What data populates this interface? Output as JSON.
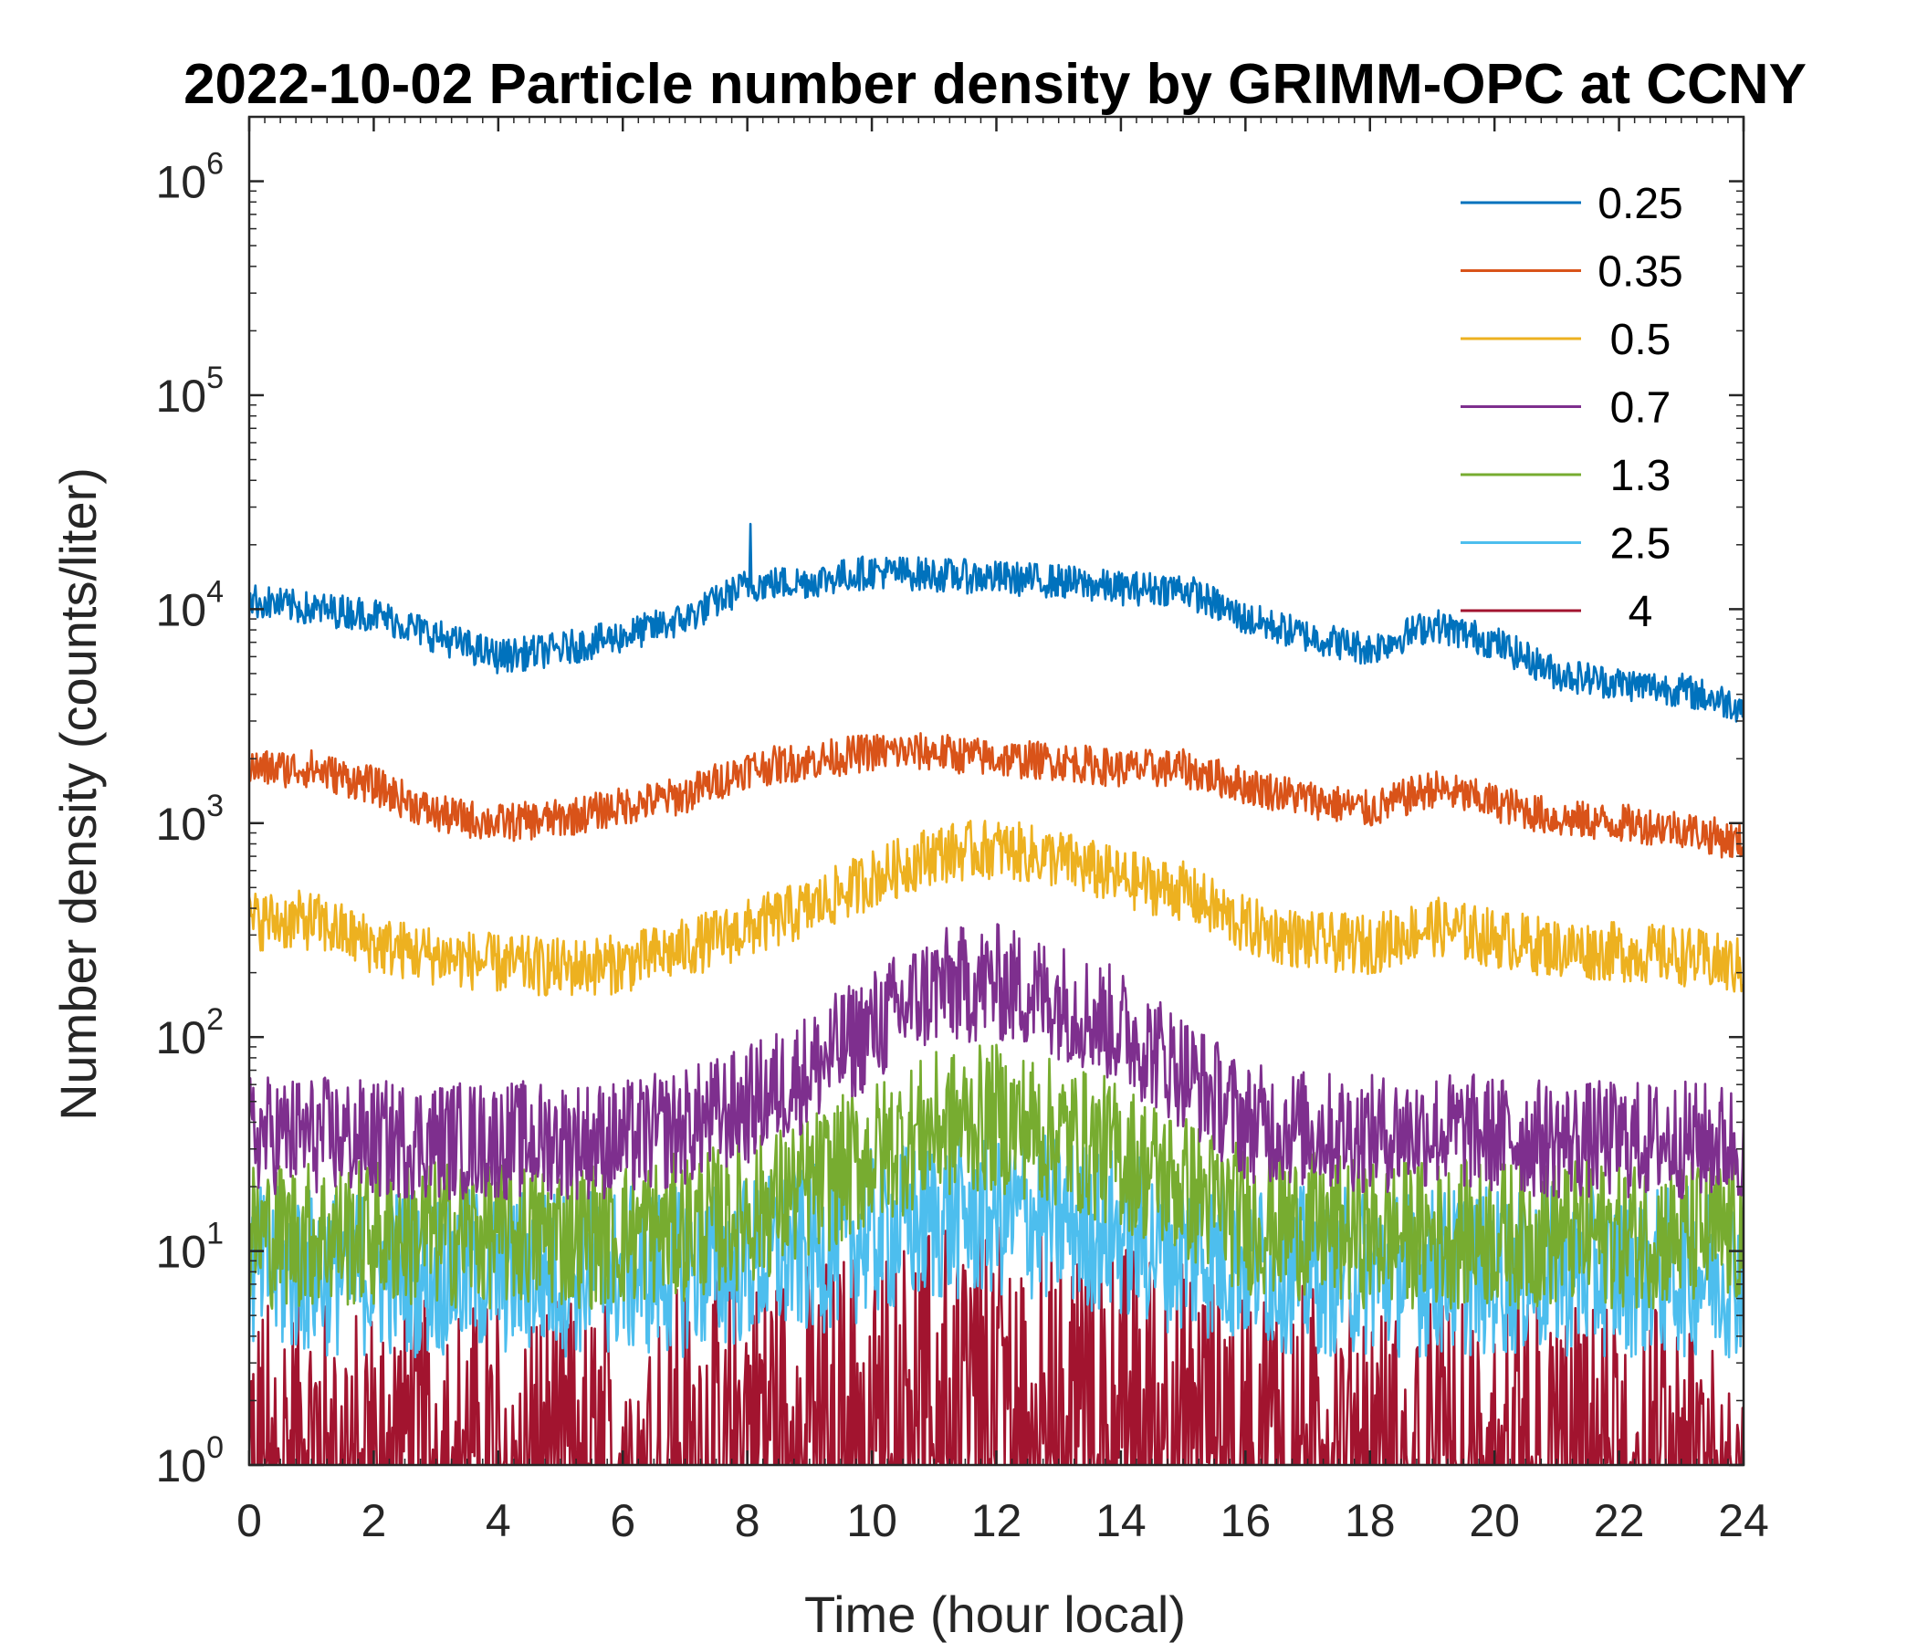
{
  "chart_data": {
    "type": "line",
    "title": "2022-10-02 Particle number density by GRIMM-OPC at CCNY",
    "xlabel": "Time (hour local)",
    "ylabel": "Number density (counts/liter)",
    "yscale": "log",
    "xlim": [
      0,
      24
    ],
    "ylim": [
      1,
      2000000
    ],
    "x_ticks": [
      0,
      2,
      4,
      6,
      8,
      10,
      12,
      14,
      16,
      18,
      20,
      22,
      24
    ],
    "x_tick_labels": [
      "0",
      "2",
      "4",
      "6",
      "8",
      "10",
      "12",
      "14",
      "16",
      "18",
      "20",
      "22",
      "24"
    ],
    "y_ticks": [
      1,
      10,
      100,
      1000,
      10000,
      100000,
      1000000
    ],
    "y_tick_labels": [
      {
        "base": "10",
        "exp": "0"
      },
      {
        "base": "10",
        "exp": "1"
      },
      {
        "base": "10",
        "exp": "2"
      },
      {
        "base": "10",
        "exp": "3"
      },
      {
        "base": "10",
        "exp": "4"
      },
      {
        "base": "10",
        "exp": "5"
      },
      {
        "base": "10",
        "exp": "6"
      }
    ],
    "legend_position": "top-right",
    "x": [
      0,
      1,
      2,
      3,
      4,
      5,
      6,
      7,
      8,
      9,
      10,
      11,
      12,
      13,
      14,
      15,
      16,
      17,
      18,
      19,
      20,
      21,
      22,
      23,
      24
    ],
    "series": [
      {
        "name": "0.25",
        "legend_label": "0.25",
        "color": "#0072BD",
        "noise": 0.08,
        "values": [
          11000,
          10000,
          9500,
          7500,
          6000,
          6500,
          7500,
          9000,
          13000,
          13500,
          15000,
          14500,
          14000,
          13500,
          12500,
          12500,
          9000,
          7500,
          6500,
          8500,
          7000,
          5000,
          4500,
          4200,
          3500
        ],
        "spikes": [
          {
            "x": 8.05,
            "y": 25000
          }
        ]
      },
      {
        "name": "0.35",
        "legend_label": "0.35",
        "color": "#D95319",
        "noise": 0.09,
        "values": [
          1800,
          1800,
          1500,
          1100,
          1000,
          1050,
          1200,
          1350,
          1800,
          1950,
          2150,
          2150,
          2000,
          1950,
          1800,
          1800,
          1500,
          1300,
          1150,
          1450,
          1250,
          1050,
          1000,
          950,
          800
        ],
        "spikes": []
      },
      {
        "name": "0.5",
        "legend_label": "0.5",
        "color": "#EDB120",
        "noise": 0.14,
        "values": [
          350,
          350,
          270,
          240,
          220,
          210,
          220,
          260,
          320,
          400,
          550,
          720,
          760,
          680,
          550,
          480,
          330,
          280,
          270,
          330,
          290,
          260,
          250,
          240,
          210
        ],
        "spikes": []
      },
      {
        "name": "0.7",
        "legend_label": "0.7",
        "color": "#7E2F8E",
        "noise": 0.28,
        "values": [
          35,
          35,
          33,
          33,
          33,
          33,
          33,
          38,
          48,
          70,
          110,
          170,
          180,
          150,
          110,
          70,
          40,
          37,
          35,
          37,
          35,
          33,
          33,
          33,
          32
        ],
        "spikes": []
      },
      {
        "name": "1.3",
        "legend_label": "1.3",
        "color": "#77AC30",
        "noise": 0.35,
        "values": [
          12,
          12,
          12,
          12,
          12,
          12,
          12,
          13,
          15,
          20,
          28,
          38,
          42,
          35,
          28,
          20,
          14,
          13,
          12,
          12,
          12,
          12,
          12,
          12,
          12
        ],
        "spikes": []
      },
      {
        "name": "2.5",
        "legend_label": "2.5",
        "color": "#4DBEEE",
        "noise": 0.4,
        "values": [
          8,
          8,
          8,
          8,
          8,
          8,
          8,
          8,
          9,
          10,
          12,
          14,
          15,
          14,
          12,
          10,
          9,
          8,
          8,
          8,
          8,
          8,
          8,
          8,
          8
        ],
        "spikes": []
      },
      {
        "name": "4",
        "legend_label": "4",
        "color": "#A2142F",
        "noise": 0.6,
        "values": [
          1.5,
          1.5,
          1.5,
          1.5,
          1.5,
          1.5,
          1.5,
          1.8,
          2,
          2.3,
          2.8,
          3.2,
          3.3,
          3.2,
          2.8,
          2.3,
          2,
          1.8,
          1.6,
          1.6,
          1.5,
          1.5,
          1.5,
          1.5,
          1.5
        ],
        "spikes": []
      }
    ]
  }
}
